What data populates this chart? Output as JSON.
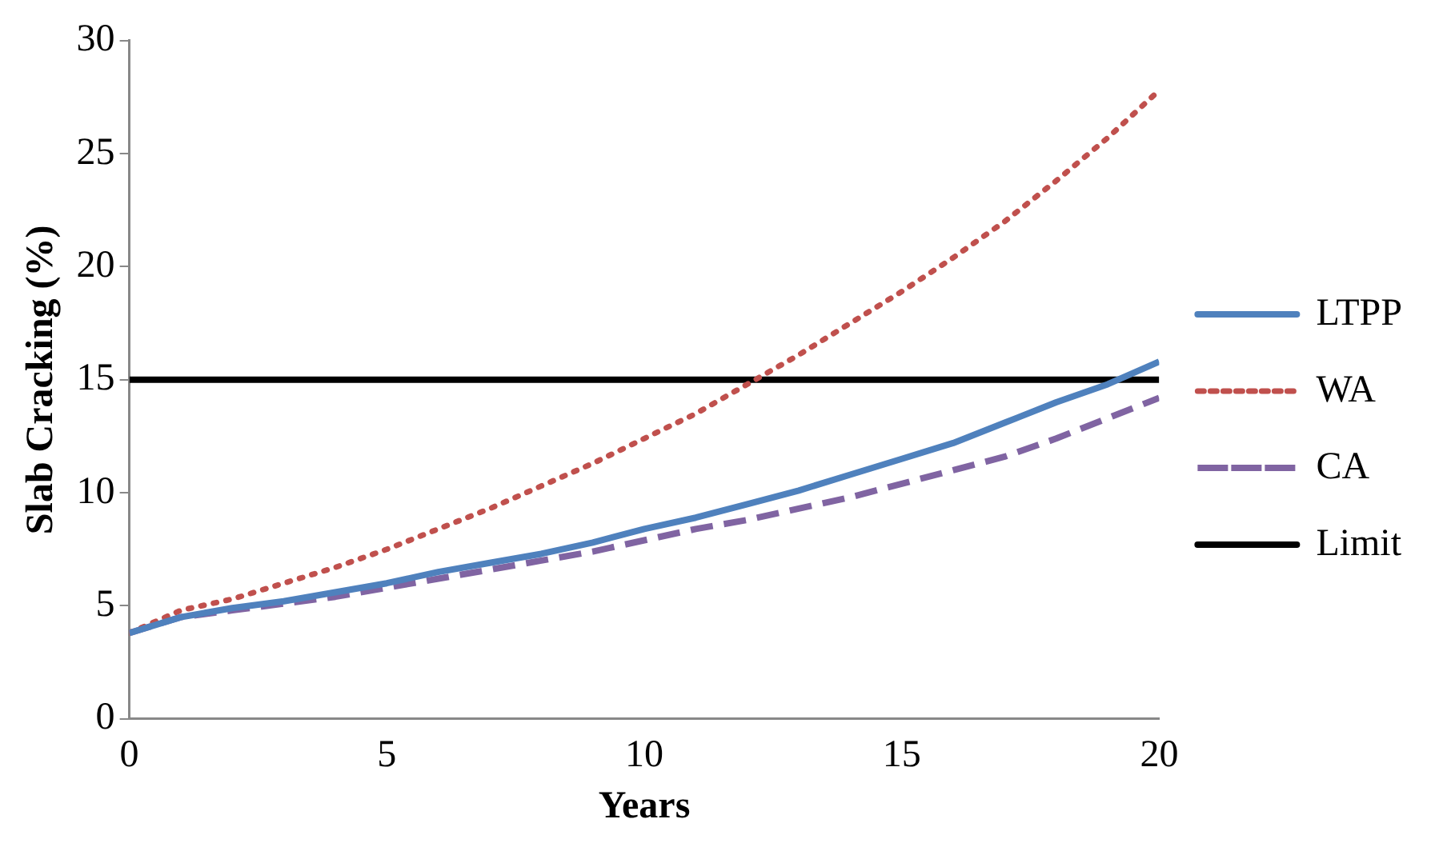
{
  "chart_data": {
    "type": "line",
    "xlabel": "Years",
    "ylabel": "Slab Cracking (%)",
    "x": [
      0,
      1,
      2,
      3,
      4,
      5,
      6,
      7,
      8,
      9,
      10,
      11,
      12,
      13,
      14,
      15,
      16,
      17,
      18,
      19,
      20
    ],
    "series": [
      {
        "name": "LTPP",
        "color": "#4f81bd",
        "line_style": "solid",
        "values": [
          3.8,
          4.5,
          4.9,
          5.2,
          5.6,
          6,
          6.5,
          6.9,
          7.3,
          7.8,
          8.4,
          8.9,
          9.5,
          10.1,
          10.8,
          11.5,
          12.2,
          13.1,
          14,
          14.8,
          15.8
        ]
      },
      {
        "name": "WA",
        "color": "#c0504d",
        "line_style": "dotted",
        "values": [
          3.8,
          4.8,
          5.3,
          6,
          6.7,
          7.5,
          8.4,
          9.3,
          10.3,
          11.3,
          12.4,
          13.5,
          14.8,
          16.1,
          17.5,
          18.9,
          20.4,
          22,
          23.8,
          25.7,
          27.8
        ]
      },
      {
        "name": "CA",
        "color": "#8064a2",
        "line_style": "dashed",
        "values": [
          3.8,
          4.5,
          4.8,
          5.1,
          5.4,
          5.8,
          6.2,
          6.6,
          7,
          7.4,
          7.9,
          8.4,
          8.8,
          9.3,
          9.8,
          10.4,
          11,
          11.6,
          12.4,
          13.3,
          14.2
        ]
      },
      {
        "name": "Limit",
        "color": "#000000",
        "line_style": "solid",
        "x": [
          0,
          20
        ],
        "values": [
          15,
          15
        ]
      }
    ],
    "xlim": [
      0,
      20
    ],
    "xticks": [
      0,
      5,
      10,
      15,
      20
    ],
    "ylim": [
      0,
      30
    ],
    "yticks": [
      0,
      5,
      10,
      15,
      20,
      25,
      30
    ],
    "grid": false,
    "legend": "right",
    "marker": "none"
  }
}
